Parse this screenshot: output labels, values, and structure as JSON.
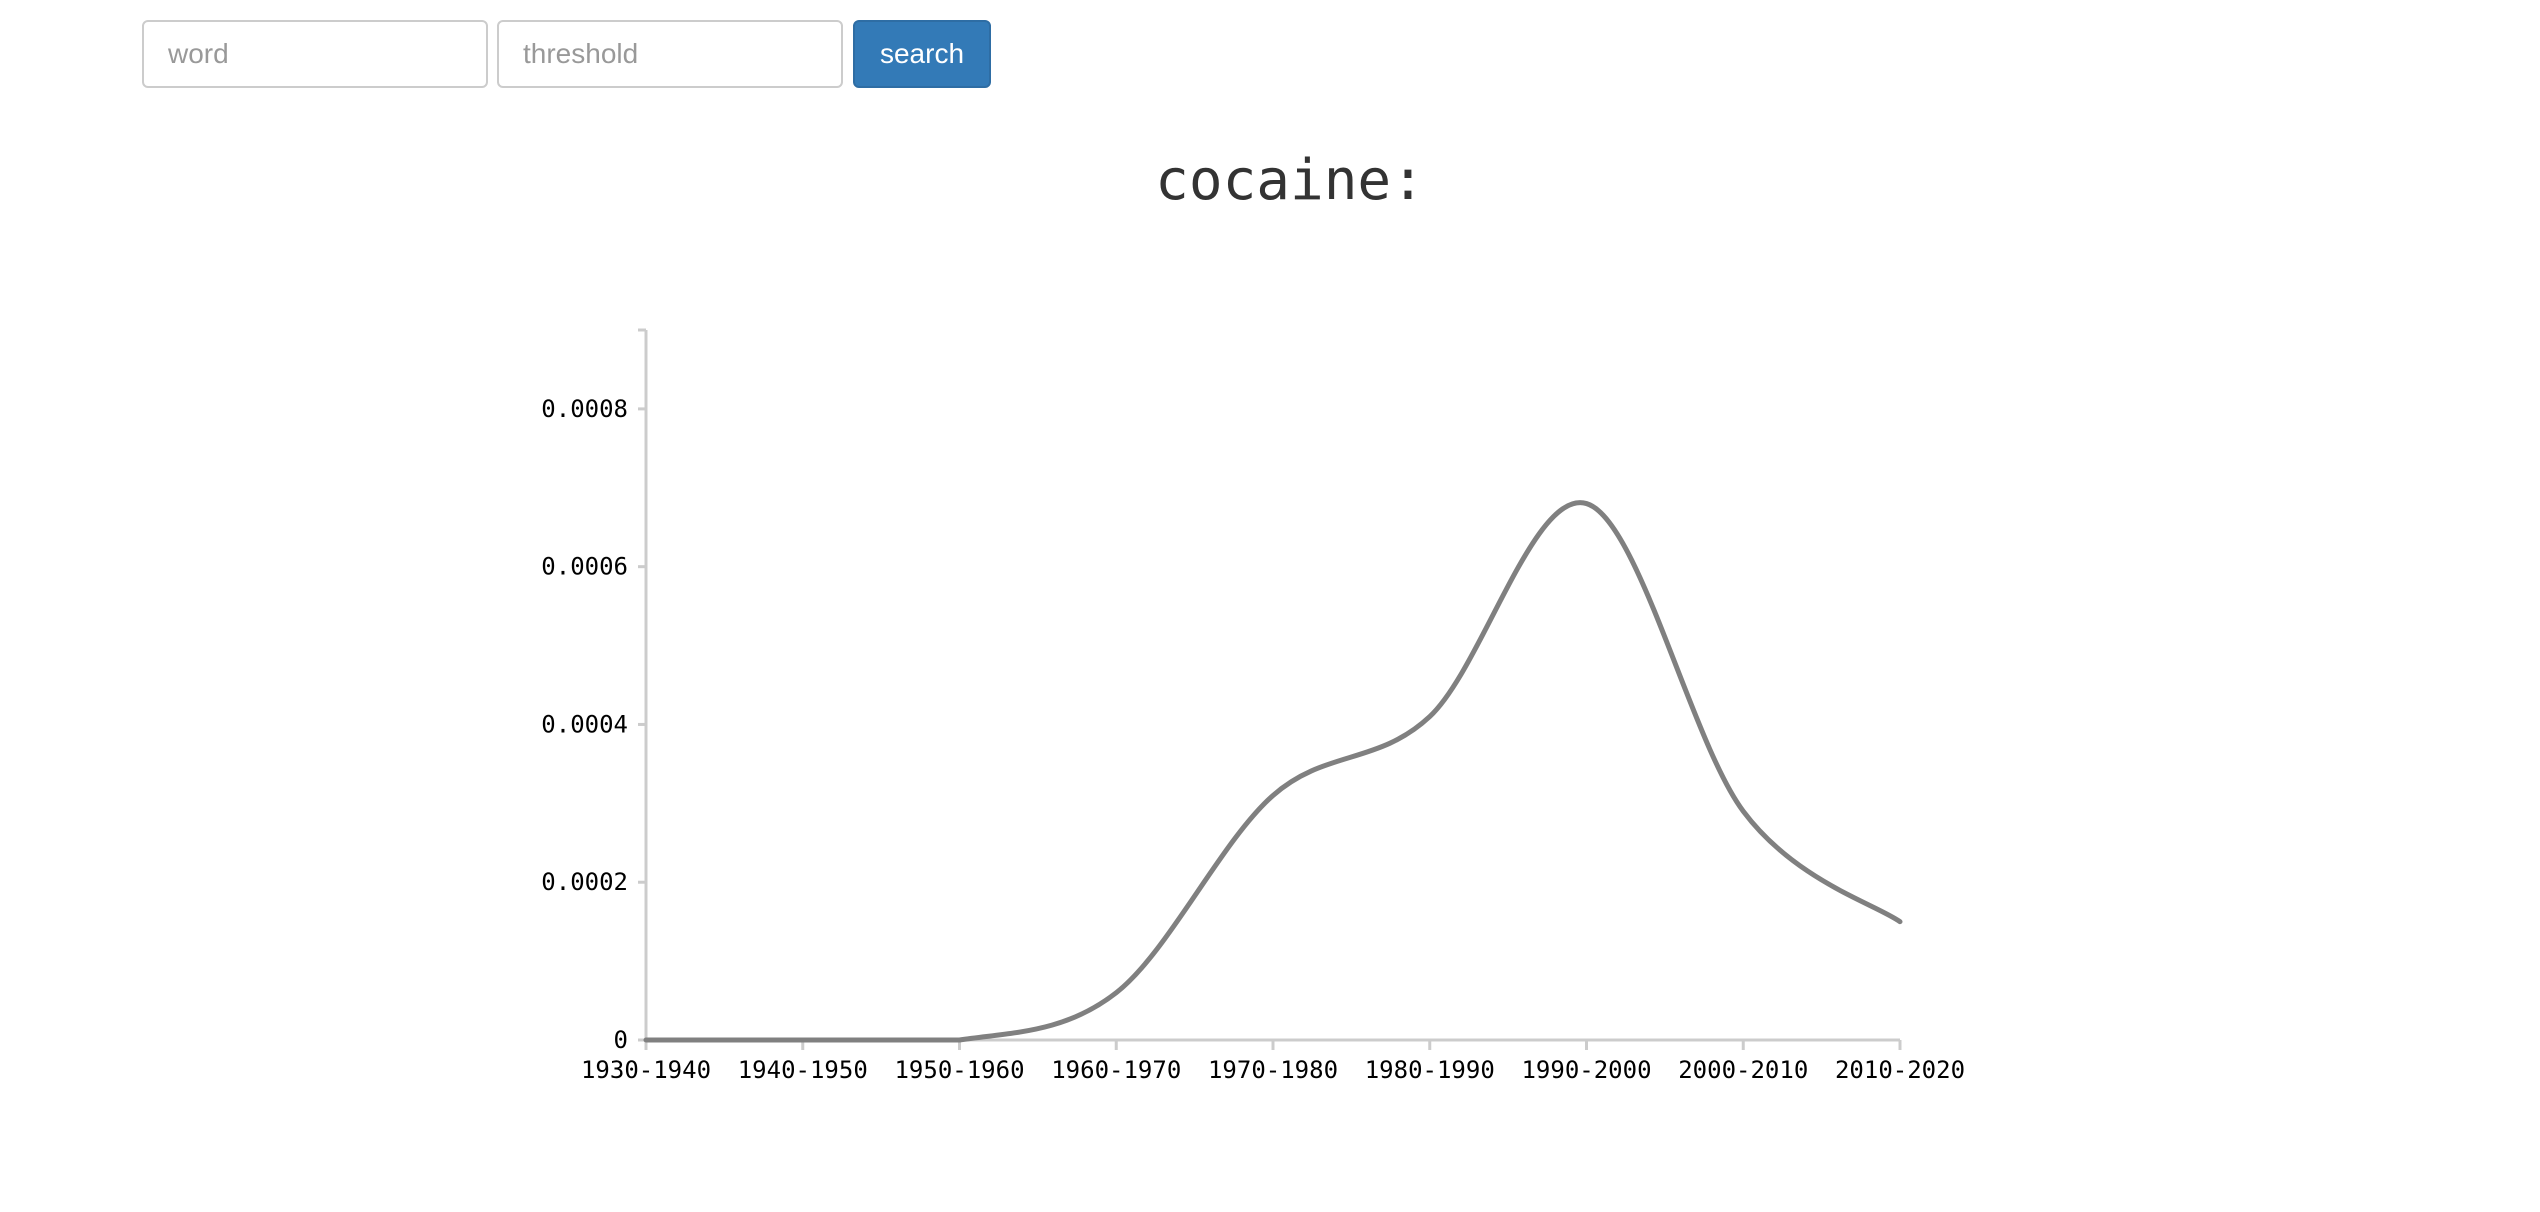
{
  "search": {
    "word_placeholder": "word",
    "threshold_placeholder": "threshold",
    "button_label": "search"
  },
  "colors": {
    "button_bg": "#337ab7",
    "line": "#808080",
    "axis": "#cccccc"
  },
  "chart_data": {
    "type": "line",
    "title": "cocaine:",
    "xlabel": "",
    "ylabel": "",
    "categories": [
      "1930-1940",
      "1940-1950",
      "1950-1960",
      "1960-1970",
      "1970-1980",
      "1980-1990",
      "1990-2000",
      "2000-2010",
      "2010-2020"
    ],
    "values": [
      0,
      0,
      0,
      6e-05,
      0.00031,
      0.00041,
      0.00068,
      0.00029,
      0.00015
    ],
    "ylim": [
      0,
      0.0009
    ],
    "yticks": [
      0,
      0.0002,
      0.0004,
      0.0006,
      0.0008
    ],
    "ytick_labels": [
      "0",
      "0.0002",
      "0.0004",
      "0.0006",
      "0.0008"
    ],
    "grid": false,
    "legend": "none",
    "curve": "smooth"
  }
}
